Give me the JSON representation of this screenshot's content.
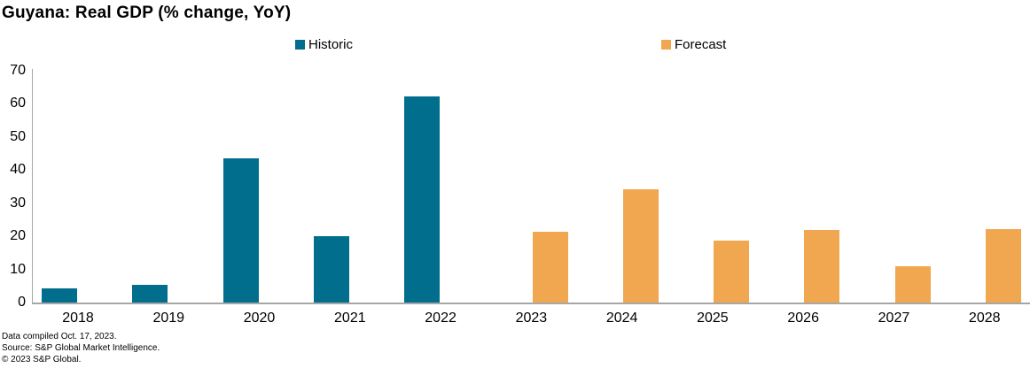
{
  "title": "Guyana: Real GDP (% change, YoY)",
  "legend": {
    "historic_label": "Historic",
    "forecast_label": "Forecast"
  },
  "colors": {
    "historic": "#006e8c",
    "forecast": "#f0a750",
    "axis_line": "#a6a6a6",
    "text": "#000000"
  },
  "footer": {
    "line1": "Data compiled Oct. 17, 2023.",
    "line2": "Source: S&P Global Market Intelligence.",
    "line3": "© 2023 S&P Global."
  },
  "chart_data": {
    "type": "bar",
    "title": "Guyana: Real GDP (% change, YoY)",
    "categories": [
      "2018",
      "2019",
      "2020",
      "2021",
      "2022",
      "2023",
      "2024",
      "2025",
      "2026",
      "2027",
      "2028"
    ],
    "series": [
      {
        "name": "Historic",
        "color": "#006e8c",
        "values": [
          4.4,
          5.4,
          43.5,
          20.0,
          62.3,
          null,
          null,
          null,
          null,
          null,
          null
        ]
      },
      {
        "name": "Forecast",
        "color": "#f0a750",
        "values": [
          null,
          null,
          null,
          null,
          null,
          21.3,
          34.2,
          18.7,
          22.0,
          11.0,
          22.1
        ]
      }
    ],
    "xlabel": "",
    "ylabel": "",
    "ylim": [
      0,
      70
    ],
    "yticks": [
      0,
      10,
      20,
      30,
      40,
      50,
      60,
      70
    ],
    "grid": false,
    "legend_position": "top"
  }
}
